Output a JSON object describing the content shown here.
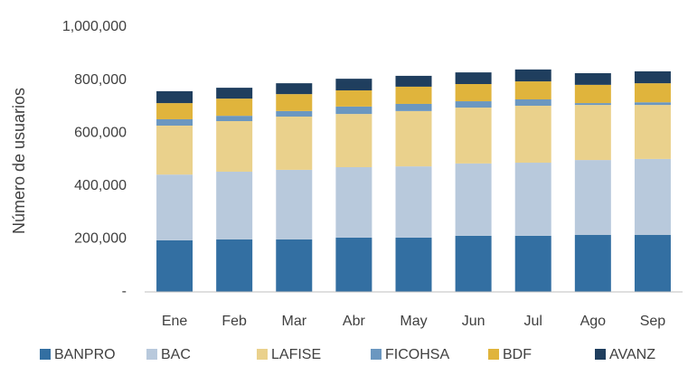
{
  "chart_data": {
    "type": "stacked_bar",
    "y_label": "Número de usuarios",
    "categories": [
      "Ene",
      "Feb",
      "Mar",
      "Abr",
      "May",
      "Jun",
      "Jul",
      "Ago",
      "Sep"
    ],
    "series": [
      {
        "name": "BANPRO",
        "color": "#336fa2",
        "values": [
          195000,
          198000,
          198000,
          205000,
          205000,
          212000,
          212000,
          215000,
          215000
        ]
      },
      {
        "name": "BAC",
        "color": "#b8c9dc",
        "values": [
          248000,
          256000,
          263000,
          266000,
          269000,
          273000,
          276000,
          283000,
          287000
        ]
      },
      {
        "name": "LAFISE",
        "color": "#ead18c",
        "values": [
          185000,
          191000,
          201000,
          201000,
          209000,
          211000,
          215000,
          208000,
          204000
        ]
      },
      {
        "name": "FICOHSA",
        "color": "#6b97c0",
        "values": [
          24000,
          20000,
          21000,
          28000,
          27000,
          24000,
          24000,
          7000,
          10000
        ]
      },
      {
        "name": "BDF",
        "color": "#e0b43c",
        "values": [
          61000,
          65000,
          64000,
          61000,
          65000,
          65000,
          68000,
          69000,
          72000
        ]
      },
      {
        "name": "AVANZ",
        "color": "#1f3e5e",
        "values": [
          45000,
          41000,
          41000,
          44000,
          41000,
          44000,
          45000,
          44000,
          45000
        ]
      }
    ],
    "ylim": [
      0,
      1000000
    ],
    "yticks": [
      {
        "value": 0,
        "label": "-"
      },
      {
        "value": 200000,
        "label": "200,000"
      },
      {
        "value": 400000,
        "label": "400,000"
      },
      {
        "value": 600000,
        "label": "600,000"
      },
      {
        "value": 800000,
        "label": "800,000"
      },
      {
        "value": 1000000,
        "label": "1,000,000"
      }
    ],
    "legend": "bottom"
  }
}
